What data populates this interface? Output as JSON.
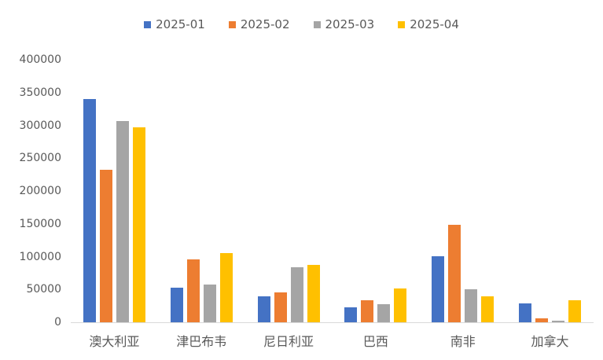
{
  "chart_data": {
    "type": "bar",
    "title": "",
    "xlabel": "",
    "ylabel": "",
    "categories": [
      "澳大利亚",
      "津巴布韦",
      "尼日利亚",
      "巴西",
      "南非",
      "加拿大"
    ],
    "series": [
      {
        "name": "2025-01",
        "color": "#4472C4",
        "values": [
          340000,
          53000,
          39000,
          23000,
          100000,
          29000
        ]
      },
      {
        "name": "2025-02",
        "color": "#ED7D31",
        "values": [
          232000,
          96000,
          46000,
          33000,
          148000,
          6000
        ]
      },
      {
        "name": "2025-03",
        "color": "#A5A5A5",
        "values": [
          306000,
          58000,
          84000,
          28000,
          50000,
          2000
        ]
      },
      {
        "name": "2025-04",
        "color": "#FFC000",
        "values": [
          297000,
          105000,
          88000,
          52000,
          39000,
          33000
        ]
      }
    ],
    "ylim": [
      0,
      400000
    ],
    "ytick_step": 50000,
    "ytick_labels": [
      "400000",
      "350000",
      "300000",
      "250000",
      "200000",
      "150000",
      "100000",
      "50000",
      "0"
    ],
    "legend_position": "top",
    "grid": false,
    "colors": {
      "axis_text": "#595959",
      "baseline": "#d9d9d9",
      "background": "#ffffff"
    }
  }
}
